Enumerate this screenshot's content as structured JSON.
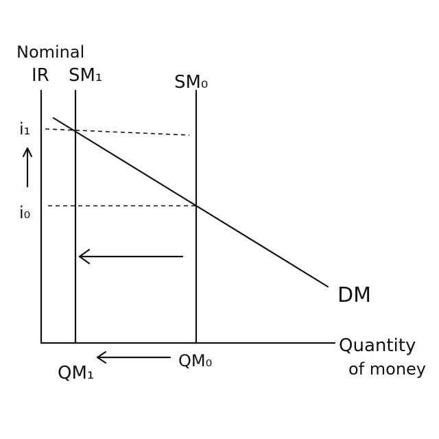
{
  "diagram": {
    "y_axis_label_line1": "Nominal",
    "y_axis_label_line2": "IR",
    "x_axis_label_line1": "Quantity",
    "x_axis_label_line2": "of money",
    "supply_new_label": "SM₁",
    "supply_old_label": "SM₀",
    "demand_label": "DM",
    "rate_new_label": "i₁",
    "rate_old_label": "i₀",
    "quantity_new_label": "QM₁",
    "quantity_old_label": "QM₀",
    "ink_color": "#111111",
    "background_color": "#ffffff"
  }
}
